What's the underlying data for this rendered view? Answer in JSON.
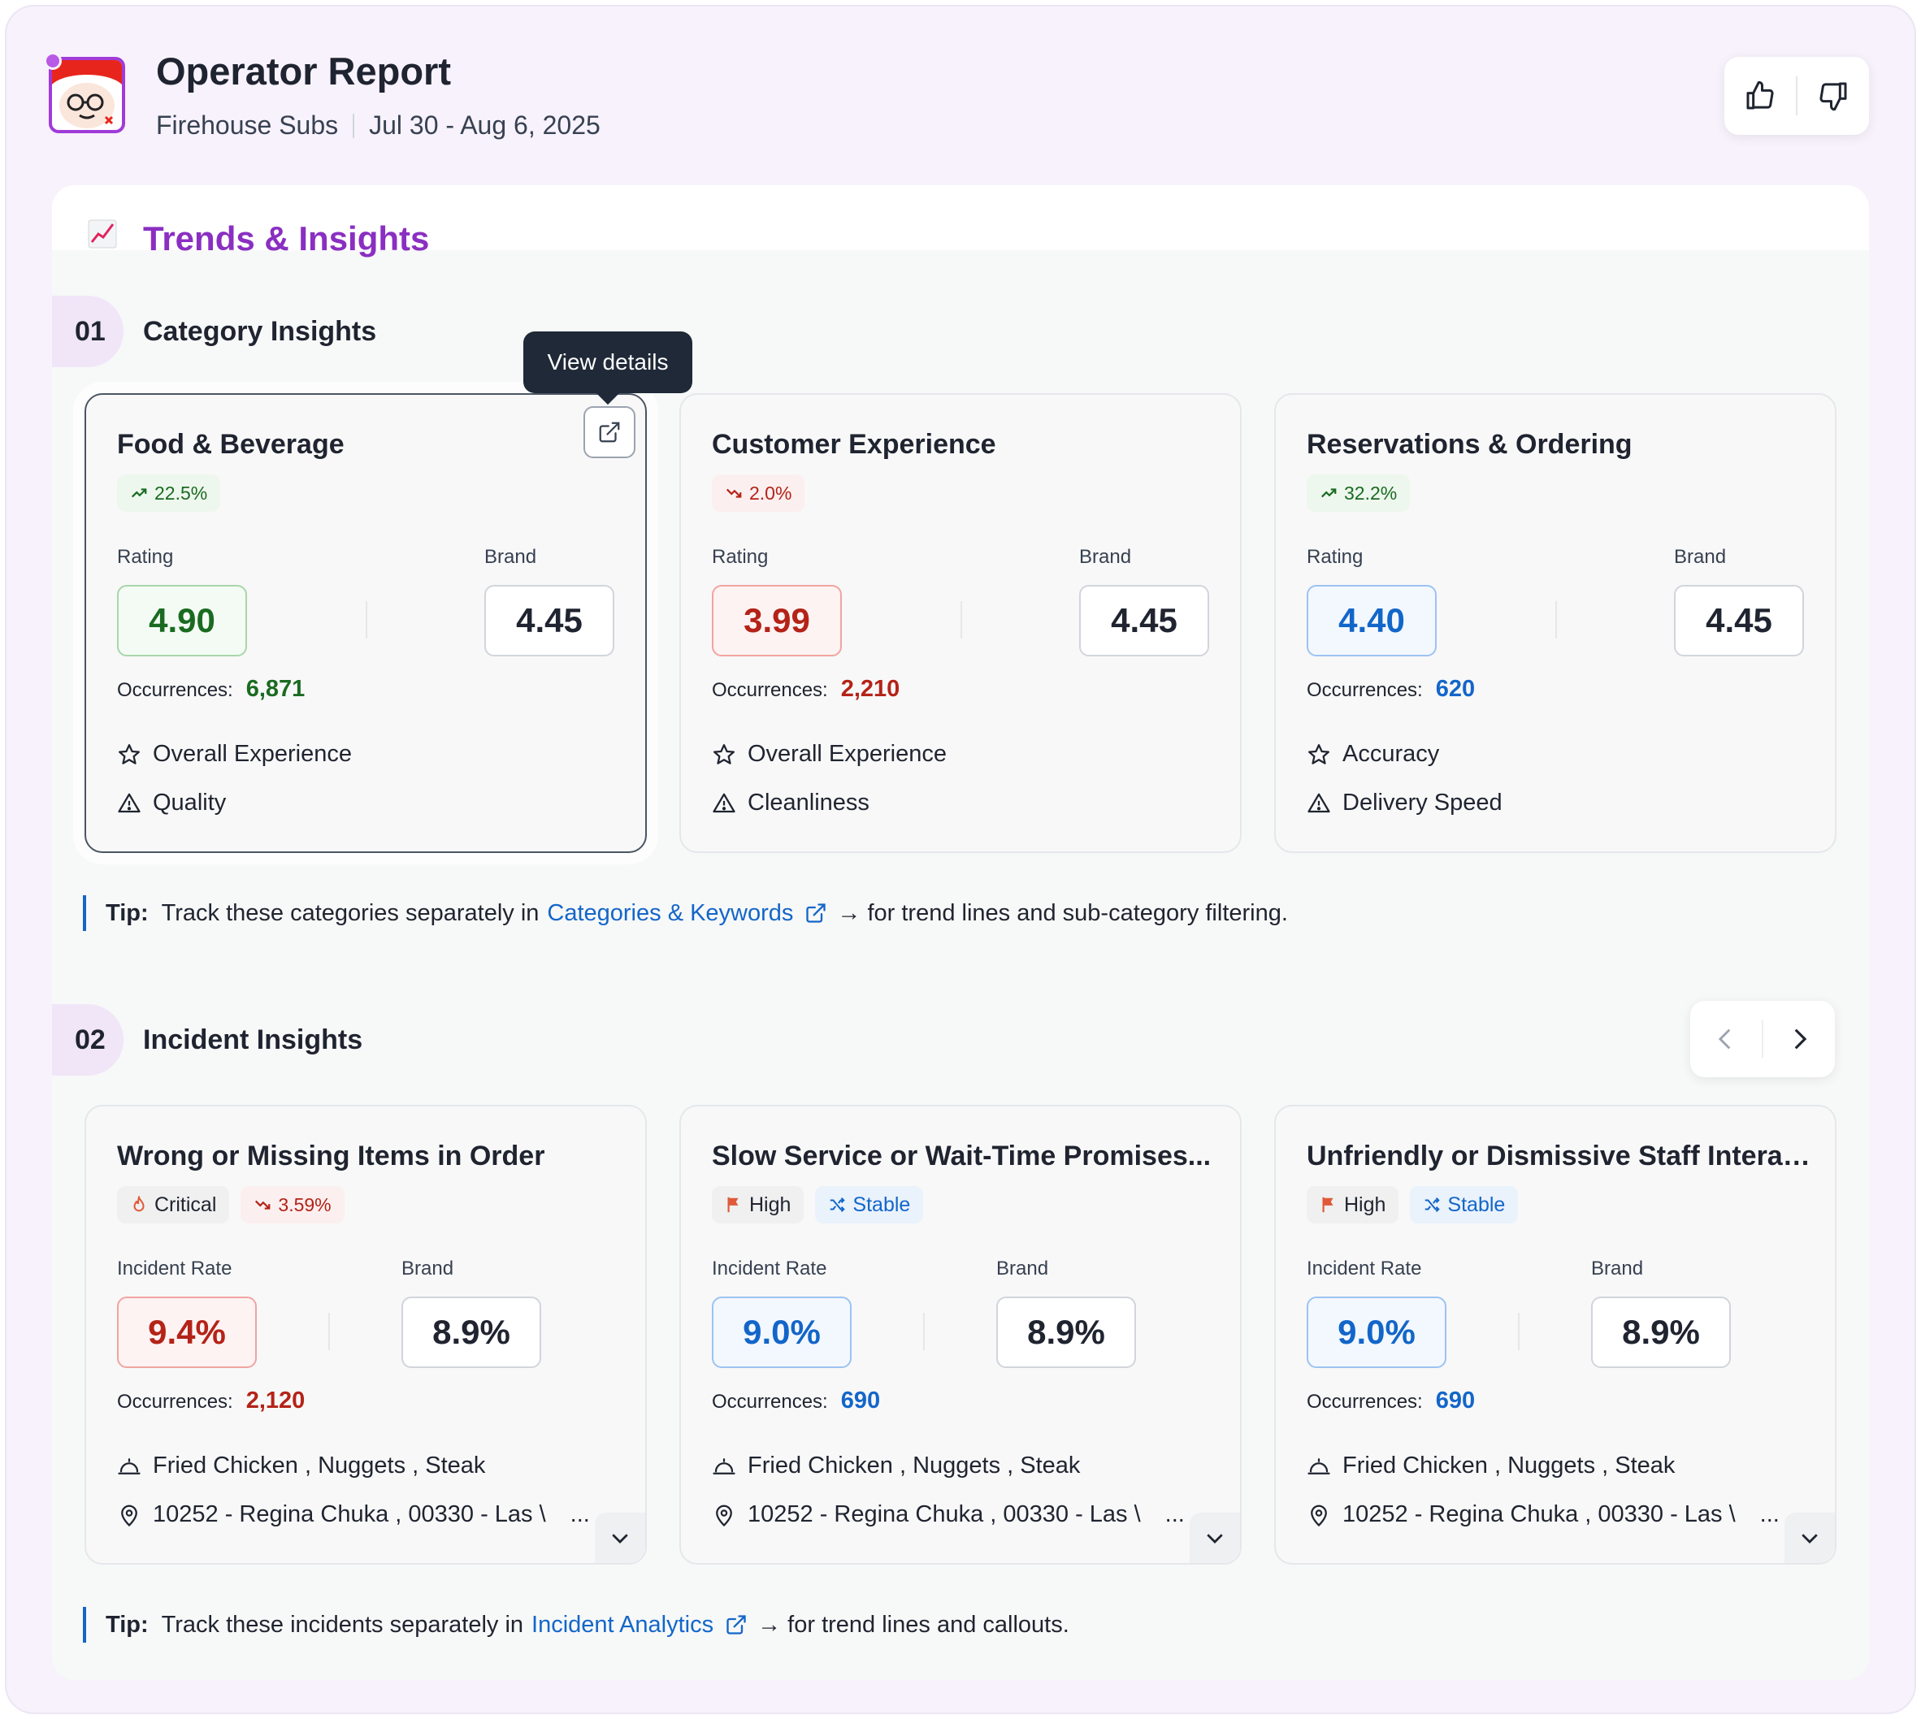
{
  "header": {
    "title": "Operator Report",
    "brand": "Firehouse Subs",
    "date_range": "Jul 30 - Aug 6, 2025"
  },
  "section_heading": {
    "icon": "chart-increasing-emoji",
    "title": "Trends & Insights"
  },
  "category_section": {
    "number": "01",
    "title": "Category Insights",
    "tooltip": "View details",
    "cards": [
      {
        "title": "Food & Beverage",
        "trend": "22.5%",
        "trend_dir": "up",
        "rating_label": "Rating",
        "rating": "4.90",
        "brand_label": "Brand",
        "brand": "4.45",
        "occ_label": "Occurrences:",
        "occurrences": "6,871",
        "positive": "Overall Experience",
        "negative": "Quality"
      },
      {
        "title": "Customer Experience",
        "trend": "2.0%",
        "trend_dir": "down",
        "rating_label": "Rating",
        "rating": "3.99",
        "brand_label": "Brand",
        "brand": "4.45",
        "occ_label": "Occurrences:",
        "occurrences": "2,210",
        "positive": "Overall Experience",
        "negative": "Cleanliness"
      },
      {
        "title": "Reservations & Ordering",
        "trend": "32.2%",
        "trend_dir": "up",
        "rating_label": "Rating",
        "rating": "4.40",
        "brand_label": "Brand",
        "brand": "4.45",
        "occ_label": "Occurrences:",
        "occurrences": "620",
        "positive": "Accuracy",
        "negative": "Delivery Speed"
      }
    ],
    "tip": {
      "label": "Tip:",
      "before": "Track these categories separately in",
      "link": "Categories & Keywords",
      "after": "→ for trend lines and sub-category filtering."
    }
  },
  "incident_section": {
    "number": "02",
    "title": "Incident Insights",
    "cards": [
      {
        "title": "Wrong or Missing Items in Order",
        "severity": "Critical",
        "trend": "3.59%",
        "rate_label": "Incident Rate",
        "rate": "9.4%",
        "brand_label": "Brand",
        "brand": "8.9%",
        "occ_label": "Occurrences:",
        "occurrences": "2,120",
        "items": "Fried Chicken , Nuggets , Steak",
        "locations": "10252 - Regina Chuka , 00330 - Las \\",
        "more": "..."
      },
      {
        "title": "Slow Service or Wait-Time Promises...",
        "severity": "High",
        "trend": "Stable",
        "rate_label": "Incident Rate",
        "rate": "9.0%",
        "brand_label": "Brand",
        "brand": "8.9%",
        "occ_label": "Occurrences:",
        "occurrences": "690",
        "items": "Fried Chicken , Nuggets , Steak",
        "locations": "10252 - Regina Chuka , 00330 - Las \\",
        "more": "..."
      },
      {
        "title": "Unfriendly or Dismissive Staff Interact...",
        "severity": "High",
        "trend": "Stable",
        "rate_label": "Incident Rate",
        "rate": "9.0%",
        "brand_label": "Brand",
        "brand": "8.9%",
        "occ_label": "Occurrences:",
        "occurrences": "690",
        "items": "Fried Chicken , Nuggets , Steak",
        "locations": "10252 - Regina Chuka , 00330 - Las \\",
        "more": "..."
      }
    ],
    "tip": {
      "label": "Tip:",
      "before": "Track these incidents separately in",
      "link": "Incident Analytics",
      "after": "→ for trend lines and callouts."
    }
  },
  "colors": {
    "accent_purple": "#8a2fc2",
    "good_green": "#1a6b21",
    "bad_red": "#b42318",
    "neutral_blue": "#1366c9"
  }
}
